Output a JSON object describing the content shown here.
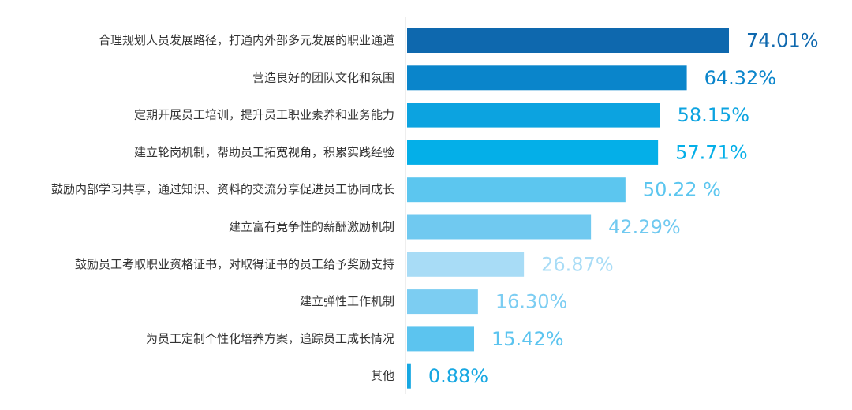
{
  "chart_data": {
    "type": "bar",
    "orientation": "horizontal",
    "title": "",
    "xlabel": "",
    "ylabel": "",
    "grid": false,
    "legend": "none",
    "xlim": [
      0,
      74.01
    ],
    "categories": [
      "合理规划人员发展路径，打通内外部多元发展的职业通道",
      "营造良好的团队文化和氛围",
      "定期开展员工培训，提升员工职业素养和业务能力",
      "建立轮岗机制，帮助员工拓宽视角，积累实践经验",
      "鼓励内部学习共享，通过知识、资料的交流分享促进员工协同成长",
      "建立富有竞争性的薪酬激励机制",
      "鼓励员工考取职业资格证书，对取得证书的员工给予奖励支持",
      "建立弹性工作机制",
      "为员工定制个性化培养方案，追踪员工成长情况",
      "其他"
    ],
    "values": [
      74.01,
      64.32,
      58.15,
      57.71,
      50.22,
      42.29,
      26.87,
      16.3,
      15.42,
      0.88
    ],
    "value_labels": [
      "74.01%",
      "64.32%",
      "58.15%",
      "57.71%",
      "50.22 %",
      "42.29%",
      "26.87%",
      "16.30%",
      "15.42%",
      "0.88%"
    ],
    "bar_colors": [
      "#0e68ae",
      "#0a85cb",
      "#0ca3e0",
      "#04afe8",
      "#5cc6ef",
      "#70c9f0",
      "#a8dcf6",
      "#7ccdf2",
      "#5cc4ef",
      "#16a7e2"
    ],
    "label_colors": [
      "#0e68ae",
      "#0a85cb",
      "#0ca3e0",
      "#04afe8",
      "#5cc6ef",
      "#70c9f0",
      "#a8dcf6",
      "#7ccdf2",
      "#5cc4ef",
      "#16a7e2"
    ],
    "axis_color": "#dddddd"
  }
}
